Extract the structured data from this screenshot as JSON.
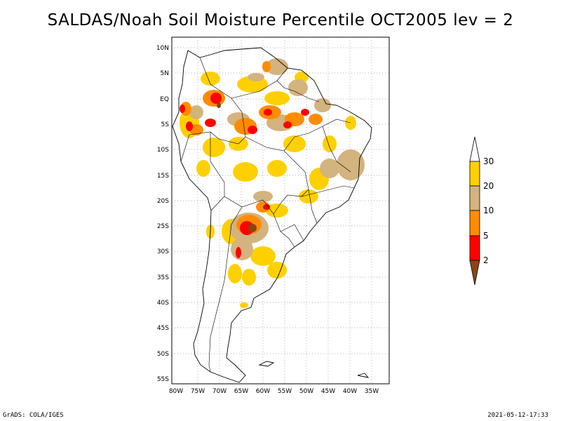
{
  "title": "SALDAS/Noah Soil Moisture Percentile OCT2005 lev = 2",
  "footer": {
    "left": "GrADS: COLA/IGES",
    "right": "2021-05-12-17:33"
  },
  "map": {
    "lat_labels": [
      "10N",
      "5N",
      "EQ",
      "5S",
      "10S",
      "15S",
      "20S",
      "25S",
      "30S",
      "35S",
      "40S",
      "45S",
      "50S",
      "55S"
    ],
    "lon_labels": [
      "80W",
      "75W",
      "70W",
      "65W",
      "60W",
      "55W",
      "50W",
      "45W",
      "40W",
      "35W"
    ]
  },
  "colorbar": {
    "labels": [
      "30",
      "20",
      "10",
      "5",
      "2"
    ],
    "colors": {
      "above30": "#ffffff",
      "20-30": "#ffd000",
      "10-20": "#d3b37e",
      "5-10": "#ff8c00",
      "2-5": "#ff0000",
      "below2": "#8b4513"
    }
  }
}
